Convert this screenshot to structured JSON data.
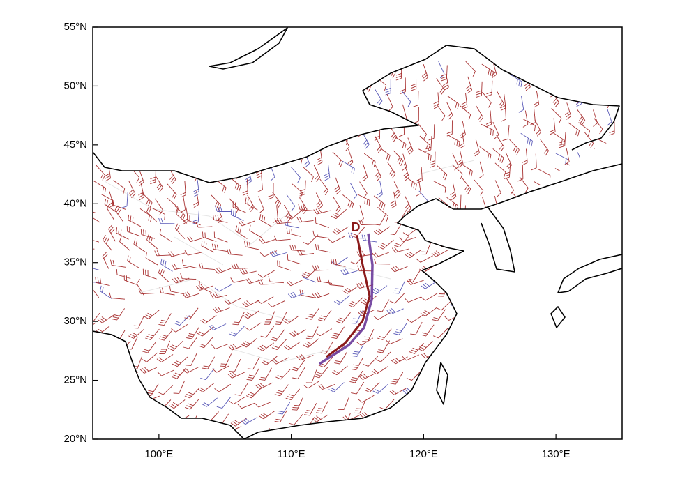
{
  "map": {
    "xlim": [
      95,
      135
    ],
    "ylim": [
      20,
      55
    ],
    "xticks": [
      {
        "value": 100,
        "label": "100°E"
      },
      {
        "value": 110,
        "label": "110°E"
      },
      {
        "value": 120,
        "label": "120°E"
      },
      {
        "value": 130,
        "label": "130°E"
      }
    ],
    "yticks": [
      {
        "value": 20,
        "label": "20°N"
      },
      {
        "value": 25,
        "label": "25°N"
      },
      {
        "value": 30,
        "label": "30°N"
      },
      {
        "value": 35,
        "label": "35°N"
      },
      {
        "value": 40,
        "label": "40°N"
      },
      {
        "value": 45,
        "label": "45°N"
      },
      {
        "value": 50,
        "label": "50°N"
      },
      {
        "value": 55,
        "label": "55°N"
      }
    ],
    "marker_label": "D"
  }
}
